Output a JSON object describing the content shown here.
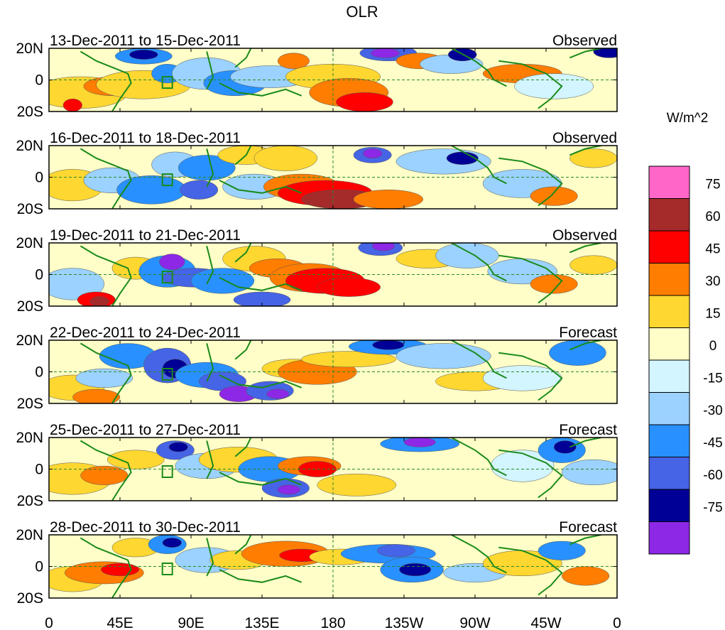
{
  "chart_data": {
    "type": "heatmap",
    "title": "OLR",
    "units_label": "W/m^2",
    "x_tick_labels": [
      "0",
      "45E",
      "90E",
      "135E",
      "180",
      "135W",
      "90W",
      "45W",
      "0"
    ],
    "y_tick_labels": [
      "20N",
      "0",
      "20S"
    ],
    "y_range_deg": [
      -20,
      20
    ],
    "x_range_deg_east": [
      0,
      360
    ],
    "colorbar": {
      "levels": [
        75,
        60,
        45,
        30,
        15,
        0,
        -15,
        -30,
        -45,
        -60,
        -75
      ],
      "colors": [
        "#ff66c8",
        "#a52a2a",
        "#ff0000",
        "#ff7d00",
        "#ffd731",
        "#fffec8",
        "#d2f5ff",
        "#9bd2ff",
        "#2891ff",
        "#4664e6",
        "#000096",
        "#8c28e6"
      ]
    },
    "panels": [
      {
        "period": "13-Dec-2011 to 15-Dec-2011",
        "kind": "Observed"
      },
      {
        "period": "16-Dec-2011 to 18-Dec-2011",
        "kind": "Observed"
      },
      {
        "period": "19-Dec-2011 to 21-Dec-2011",
        "kind": "Observed"
      },
      {
        "period": "22-Dec-2011 to 24-Dec-2011",
        "kind": "Forecast"
      },
      {
        "period": "25-Dec-2011 to 27-Dec-2011",
        "kind": "Forecast"
      },
      {
        "period": "28-Dec-2011 to 30-Dec-2011",
        "kind": "Forecast"
      }
    ]
  }
}
